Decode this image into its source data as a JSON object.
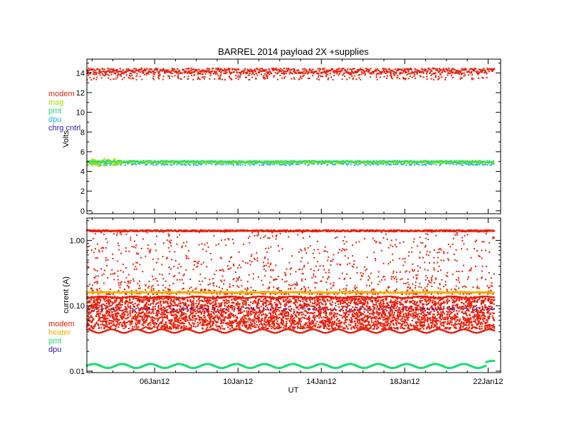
{
  "title": "BARREL 2014 payload 2X +supplies",
  "colors": {
    "modem": "#e8200c",
    "mag": "#a4e000",
    "pmt": "#18e070",
    "dpu": "#18b8d8",
    "chrg_cntrl": "#2a1ab0",
    "heater": "#f0b000",
    "axis": "#000000"
  },
  "chart_data": [
    {
      "type": "scatter",
      "title": "BARREL 2014 payload 2X +supplies",
      "xlabel": "",
      "ylabel": "Volts",
      "ylim": [
        -0.3,
        15.4
      ],
      "yticks": [
        0,
        2,
        4,
        6,
        8,
        10,
        12,
        14
      ],
      "xrange_days": [
        2.75,
        22.6
      ],
      "xticks": [
        "06Jan12",
        "10Jan12",
        "14Jan12",
        "18Jan12",
        "22Jan12"
      ],
      "legend": {
        "position": "left",
        "entries": [
          "modem",
          "mag",
          "pmt",
          "dpu",
          "chrg cntrl"
        ]
      },
      "series": [
        {
          "name": "modem",
          "values": "14.2 V band, sparse scatter down to 13.2",
          "level": 14.2
        },
        {
          "name": "mag",
          "level": 4.95
        },
        {
          "name": "pmt",
          "level": 5.0
        },
        {
          "name": "dpu",
          "level": 4.8
        },
        {
          "name": "chrg cntrl",
          "level": null
        }
      ]
    },
    {
      "type": "scatter",
      "xlabel": "UT",
      "ylabel": "current (A)",
      "yscale": "log",
      "ylim": [
        0.0095,
        2.2
      ],
      "yticks": [
        "0.01",
        "0.10",
        "1.00"
      ],
      "xrange_days": [
        2.75,
        22.6
      ],
      "xticks": [
        "06Jan12",
        "10Jan12",
        "14Jan12",
        "18Jan12",
        "22Jan12"
      ],
      "legend": {
        "position": "left",
        "entries": [
          "modem",
          "heater",
          "pmt",
          "dpu"
        ]
      },
      "series": [
        {
          "name": "modem",
          "level": 1.4,
          "band": [
            0.04,
            0.14
          ],
          "sparse_range": [
            0.15,
            1.4
          ]
        },
        {
          "name": "heater",
          "level": 0.16
        },
        {
          "name": "pmt",
          "level": 0.012
        },
        {
          "name": "dpu",
          "level": 0.09
        }
      ]
    }
  ]
}
